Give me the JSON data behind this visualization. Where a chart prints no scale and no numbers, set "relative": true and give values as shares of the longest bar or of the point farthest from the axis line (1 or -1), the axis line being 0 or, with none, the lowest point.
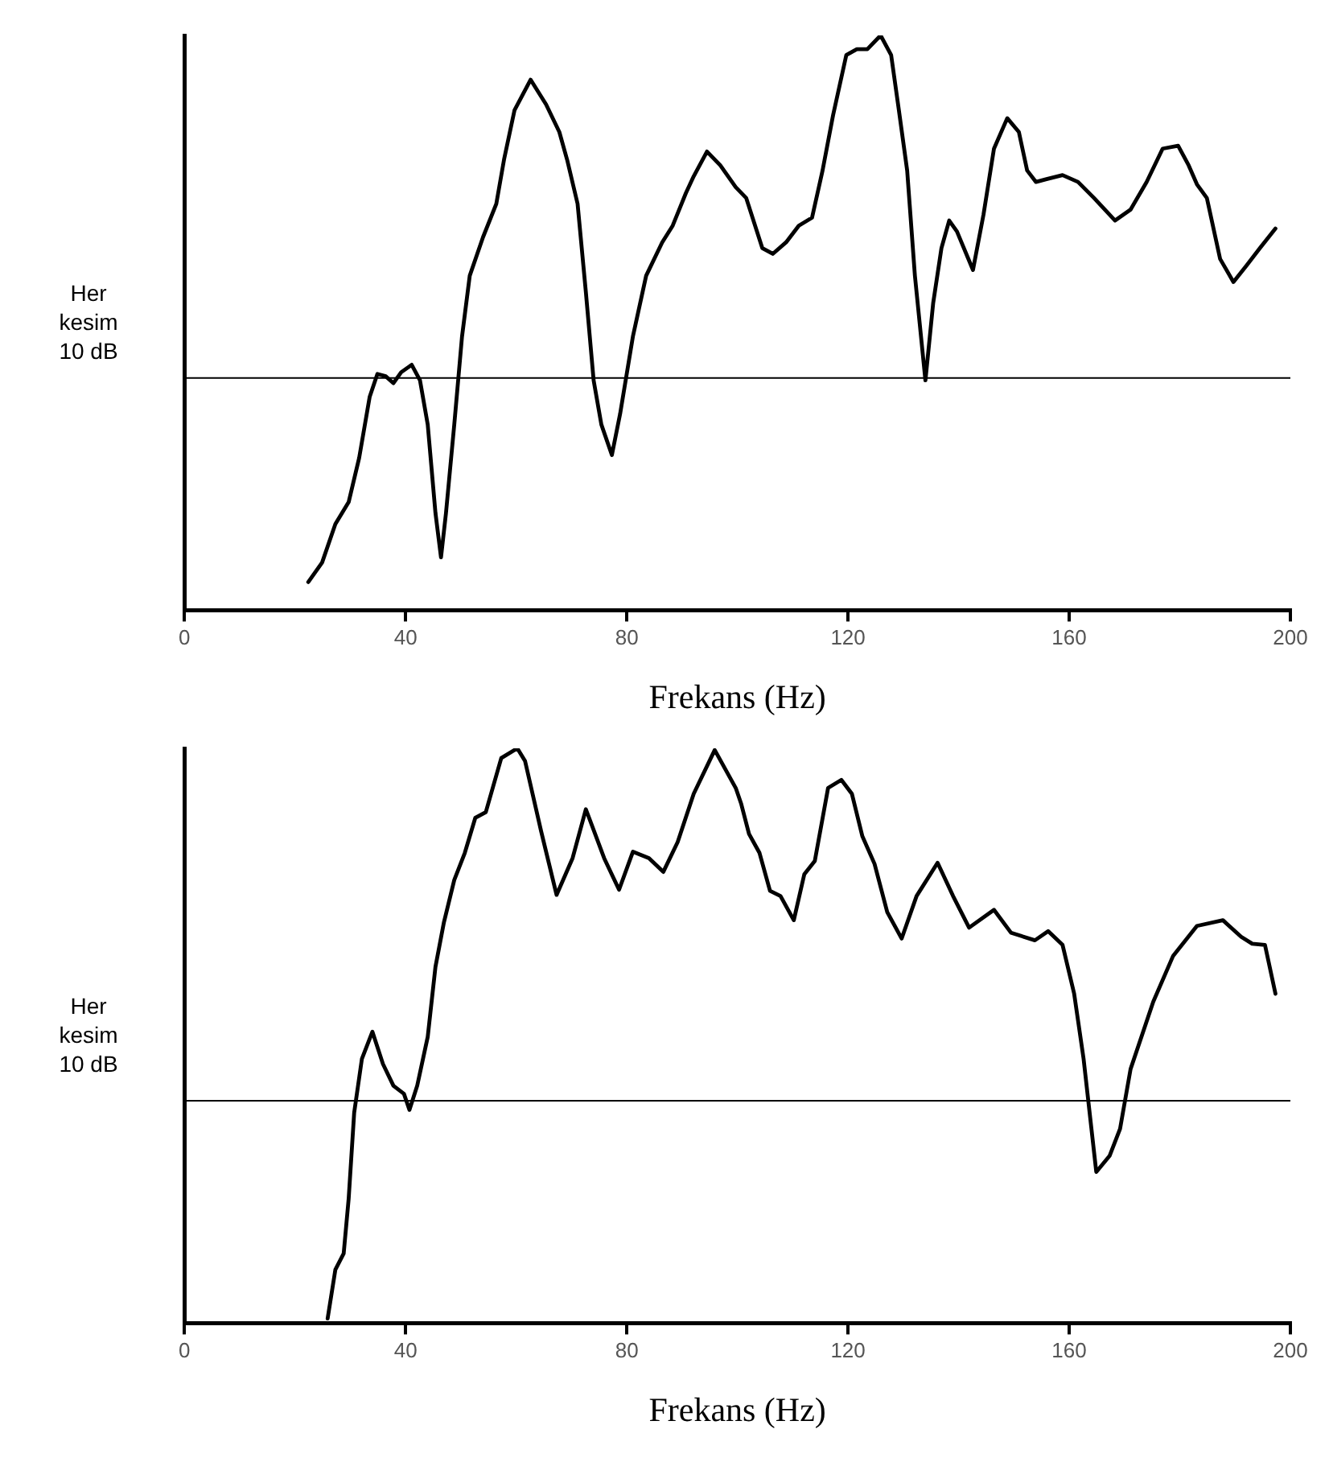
{
  "chart_data": [
    {
      "type": "line",
      "xlabel": "Frekans (Hz)",
      "ylabel": "Her kesim 10 dB",
      "relative": true,
      "xlim": [
        0,
        200
      ],
      "xticks": [
        0,
        40,
        80,
        120,
        160,
        200
      ],
      "grid": false,
      "marker": "none",
      "line_style": "solid",
      "ref_lines": [
        {
          "axis": "y",
          "value": 0.404,
          "color": "#000000"
        }
      ],
      "series": [
        {
          "color": "#000000",
          "x": [
            22.4,
            24.9,
            27.3,
            29.7,
            31.6,
            33.5,
            34.9,
            36.4,
            37.8,
            39.2,
            41.1,
            42.6,
            44.0,
            45.4,
            46.4,
            47.3,
            48.8,
            50.2,
            51.6,
            54.0,
            56.4,
            57.8,
            59.7,
            62.6,
            65.4,
            67.8,
            69.2,
            71.1,
            72.6,
            74.0,
            75.4,
            77.3,
            78.8,
            81.1,
            83.5,
            86.4,
            88.3,
            90.7,
            92.1,
            94.5,
            96.9,
            99.7,
            101.6,
            104.5,
            106.4,
            108.8,
            111.1,
            113.5,
            115.4,
            117.3,
            119.7,
            121.6,
            123.5,
            125.9,
            127.8,
            129.2,
            130.7,
            132.1,
            134.0,
            135.4,
            136.9,
            138.3,
            139.7,
            142.6,
            144.5,
            146.4,
            148.8,
            150.9,
            152.4,
            154.0,
            155.9,
            158.8,
            161.6,
            164.5,
            168.3,
            171.1,
            174.0,
            176.9,
            179.7,
            181.6,
            183.1,
            184.9,
            187.3,
            189.7,
            192.1,
            194.5,
            197.3
          ],
          "values": [
            0.049,
            0.083,
            0.15,
            0.188,
            0.265,
            0.371,
            0.411,
            0.407,
            0.395,
            0.414,
            0.427,
            0.4,
            0.323,
            0.169,
            0.092,
            0.169,
            0.323,
            0.476,
            0.582,
            0.649,
            0.707,
            0.784,
            0.87,
            0.923,
            0.88,
            0.832,
            0.784,
            0.707,
            0.553,
            0.4,
            0.323,
            0.27,
            0.342,
            0.476,
            0.582,
            0.64,
            0.669,
            0.726,
            0.755,
            0.798,
            0.774,
            0.736,
            0.717,
            0.63,
            0.62,
            0.64,
            0.669,
            0.683,
            0.765,
            0.861,
            0.966,
            0.976,
            0.976,
            1.0,
            0.966,
            0.87,
            0.765,
            0.582,
            0.4,
            0.534,
            0.63,
            0.678,
            0.659,
            0.592,
            0.688,
            0.803,
            0.856,
            0.832,
            0.765,
            0.745,
            0.75,
            0.757,
            0.745,
            0.717,
            0.678,
            0.697,
            0.745,
            0.803,
            0.808,
            0.774,
            0.741,
            0.717,
            0.611,
            0.571,
            0.6,
            0.63,
            0.664
          ]
        }
      ]
    },
    {
      "type": "line",
      "xlabel": "Frekans (Hz)",
      "ylabel": "Her kesim 10 dB",
      "relative": true,
      "xlim": [
        0,
        200
      ],
      "xticks": [
        0,
        40,
        80,
        120,
        160,
        200
      ],
      "grid": false,
      "marker": "none",
      "line_style": "solid",
      "ref_lines": [
        {
          "axis": "y",
          "value": 0.387,
          "color": "#000000"
        }
      ],
      "series": [
        {
          "color": "#000000",
          "x": [
            25.9,
            27.3,
            28.8,
            29.7,
            30.7,
            32.1,
            34.0,
            35.9,
            37.8,
            39.7,
            40.7,
            42.1,
            44.0,
            45.4,
            46.9,
            48.8,
            50.7,
            52.6,
            54.5,
            57.3,
            60.2,
            61.6,
            64.5,
            67.3,
            70.2,
            72.6,
            75.9,
            78.6,
            81.1,
            84.0,
            86.6,
            89.2,
            92.1,
            95.9,
            99.7,
            100.7,
            102.1,
            104.0,
            105.9,
            107.8,
            110.2,
            112.1,
            114.0,
            116.4,
            118.8,
            120.7,
            122.6,
            124.8,
            127.1,
            129.7,
            132.4,
            136.2,
            139.0,
            141.9,
            146.4,
            149.5,
            153.8,
            156.2,
            158.8,
            160.9,
            162.6,
            164.9,
            167.3,
            169.2,
            171.1,
            175.2,
            178.8,
            183.1,
            187.8,
            191.1,
            193.1,
            195.4,
            197.3
          ],
          "values": [
            0.008,
            0.093,
            0.121,
            0.216,
            0.366,
            0.46,
            0.507,
            0.451,
            0.413,
            0.399,
            0.371,
            0.413,
            0.498,
            0.62,
            0.696,
            0.771,
            0.818,
            0.879,
            0.889,
            0.983,
            1.0,
            0.978,
            0.856,
            0.745,
            0.809,
            0.894,
            0.809,
            0.754,
            0.82,
            0.809,
            0.785,
            0.837,
            0.921,
            0.997,
            0.931,
            0.903,
            0.851,
            0.818,
            0.752,
            0.743,
            0.701,
            0.781,
            0.804,
            0.931,
            0.945,
            0.921,
            0.847,
            0.799,
            0.715,
            0.669,
            0.743,
            0.801,
            0.743,
            0.688,
            0.719,
            0.679,
            0.666,
            0.682,
            0.658,
            0.573,
            0.46,
            0.263,
            0.291,
            0.338,
            0.442,
            0.559,
            0.639,
            0.691,
            0.701,
            0.672,
            0.66,
            0.658,
            0.573
          ]
        }
      ]
    }
  ]
}
